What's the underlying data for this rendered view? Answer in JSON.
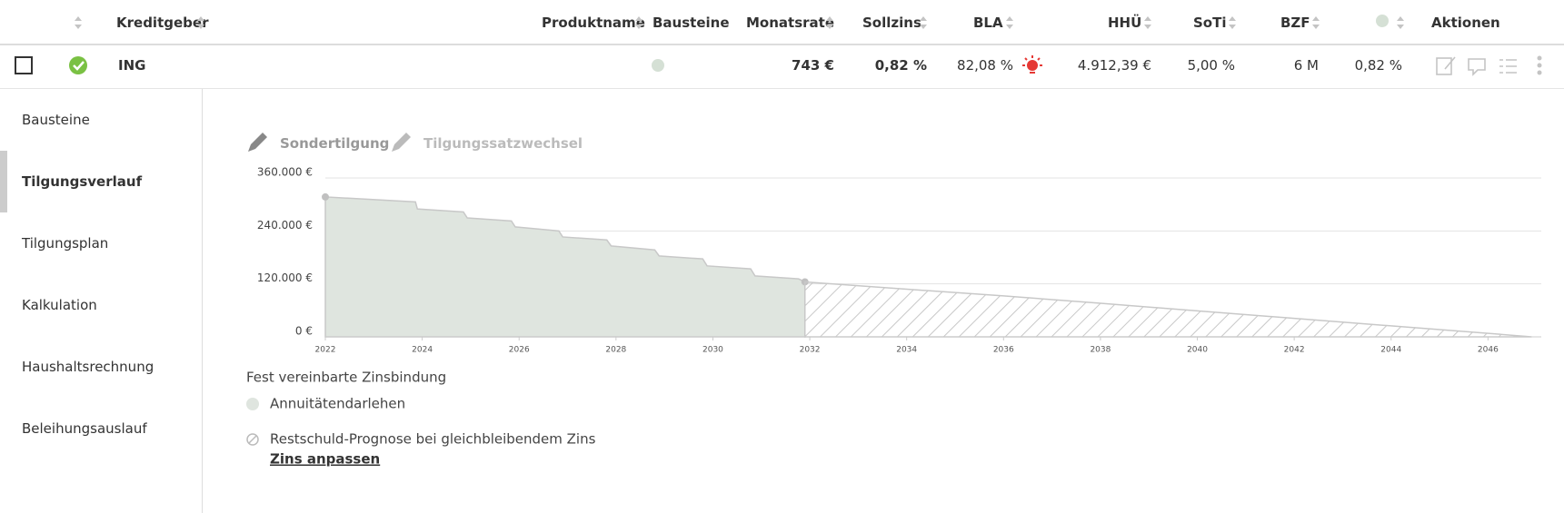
{
  "table": {
    "headers": [
      "Kreditgeber",
      "Produktname",
      "Bausteine",
      "Monatsrate",
      "Sollzins",
      "BLA",
      "HHÜ",
      "SoTi",
      "BZF",
      "Aktionen"
    ],
    "row": {
      "lender": "ING",
      "monthly_rate": "743 €",
      "interest": "0,82 %",
      "bla": "82,08 %",
      "hhu": "4.912,39 €",
      "soti": "5,00 %",
      "bzf": "6 M",
      "effective": "0,82 %"
    }
  },
  "sidebar": {
    "items": [
      "Bausteine",
      "Tilgungsverlauf",
      "Tilgungsplan",
      "Kalkulation",
      "Haushaltsrechnung",
      "Beleihungsauslauf"
    ]
  },
  "toolbar": [
    "Sondertilgung",
    "Tilgungssatzwechsel"
  ],
  "chart_data": {
    "type": "area",
    "xlim": [
      2022,
      2047.1
    ],
    "xticks": [
      2022,
      2024,
      2026,
      2028,
      2030,
      2032,
      2034,
      2036,
      2038,
      2040,
      2042,
      2044,
      2046
    ],
    "ylim": [
      0,
      360000
    ],
    "yticks": [
      {
        "value": 0,
        "label": "0 €"
      },
      {
        "value": 120000,
        "label": "120.000 €"
      },
      {
        "value": 240000,
        "label": "240.000 €"
      },
      {
        "value": 360000,
        "label": "360.000 €"
      }
    ],
    "grid": true,
    "legend_title": "Fest vereinbarte Zinsbindung",
    "link": "Zins anpassen",
    "series": [
      {
        "name": "Annuitätendarlehen",
        "color": "#dfe5df",
        "x": [
          2022,
          2023.86,
          2023.9,
          2024.85,
          2024.93,
          2025.84,
          2025.92,
          2026.82,
          2026.9,
          2027.81,
          2027.9,
          2028.8,
          2028.89,
          2029.79,
          2029.88,
          2030.78,
          2030.87,
          2031.77,
          2031.9
        ],
        "values": [
          317000,
          305700,
          289800,
          283000,
          269400,
          262600,
          249100,
          240000,
          226400,
          219600,
          206000,
          197000,
          183400,
          176600,
          160800,
          154000,
          138100,
          131300,
          124500
        ]
      },
      {
        "name": "Restschuld-Prognose bei gleichbleibendem Zins",
        "color": "#c8c8c8",
        "x": [
          2031.9,
          2034,
          2036,
          2038,
          2040,
          2042,
          2044,
          2046,
          2046.9
        ],
        "values": [
          124500,
          108000,
          92800,
          76000,
          58900,
          42000,
          24900,
          8000,
          0
        ]
      }
    ]
  }
}
